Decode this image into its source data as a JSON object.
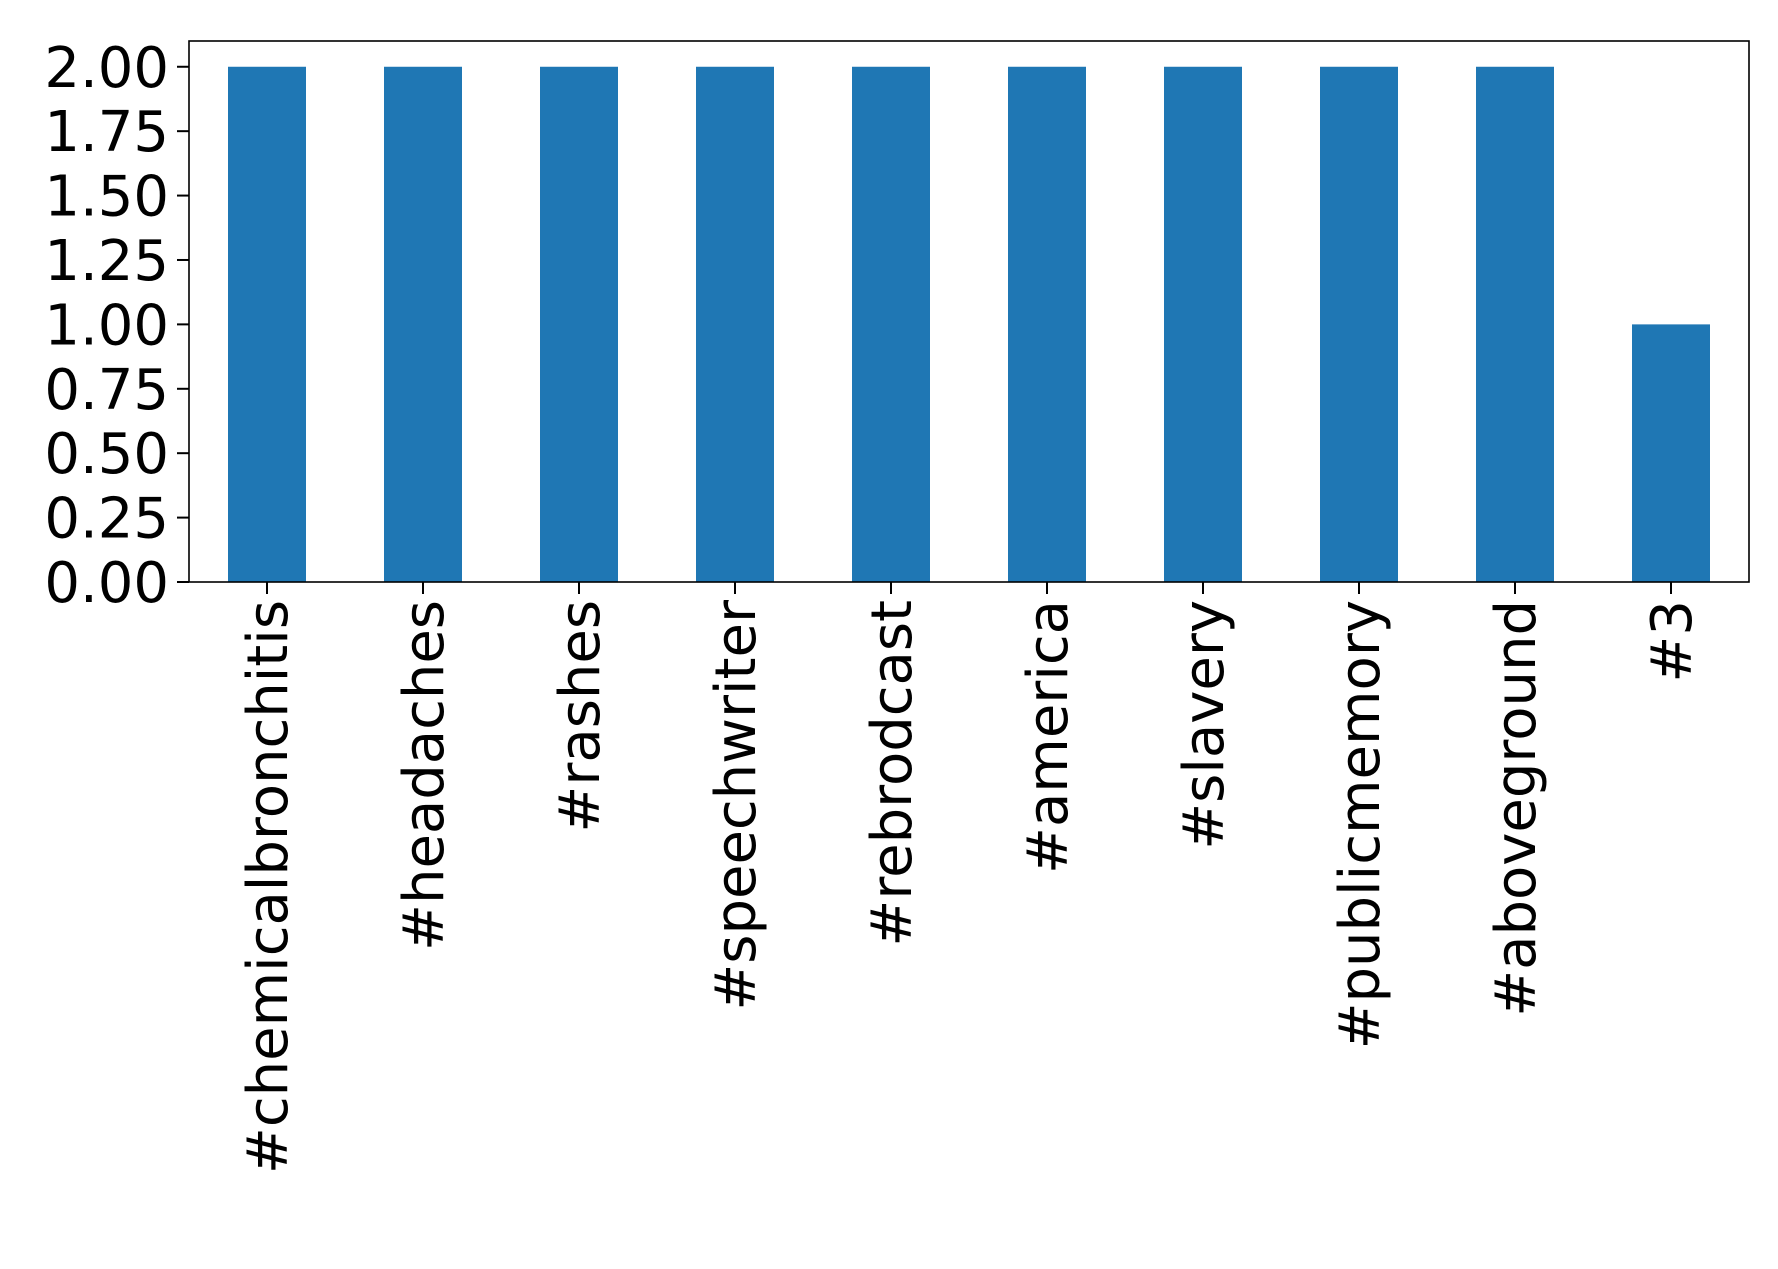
{
  "chart_data": {
    "type": "bar",
    "title": "",
    "xlabel": "",
    "ylabel": "",
    "categories": [
      "#chemicalbronchitis",
      "#headaches",
      "#rashes",
      "#speechwriter",
      "#rebrodcast",
      "#america",
      "#slavery",
      "#publicmemory",
      "#aboveground",
      "#3"
    ],
    "values": [
      2,
      2,
      2,
      2,
      2,
      2,
      2,
      2,
      2,
      1
    ],
    "ylim": [
      0,
      2.1
    ],
    "yticks": [
      "0.00",
      "0.25",
      "0.50",
      "0.75",
      "1.00",
      "1.25",
      "1.50",
      "1.75",
      "2.00"
    ],
    "grid": false,
    "legend": "none",
    "bar_color": "#1f77b4"
  }
}
